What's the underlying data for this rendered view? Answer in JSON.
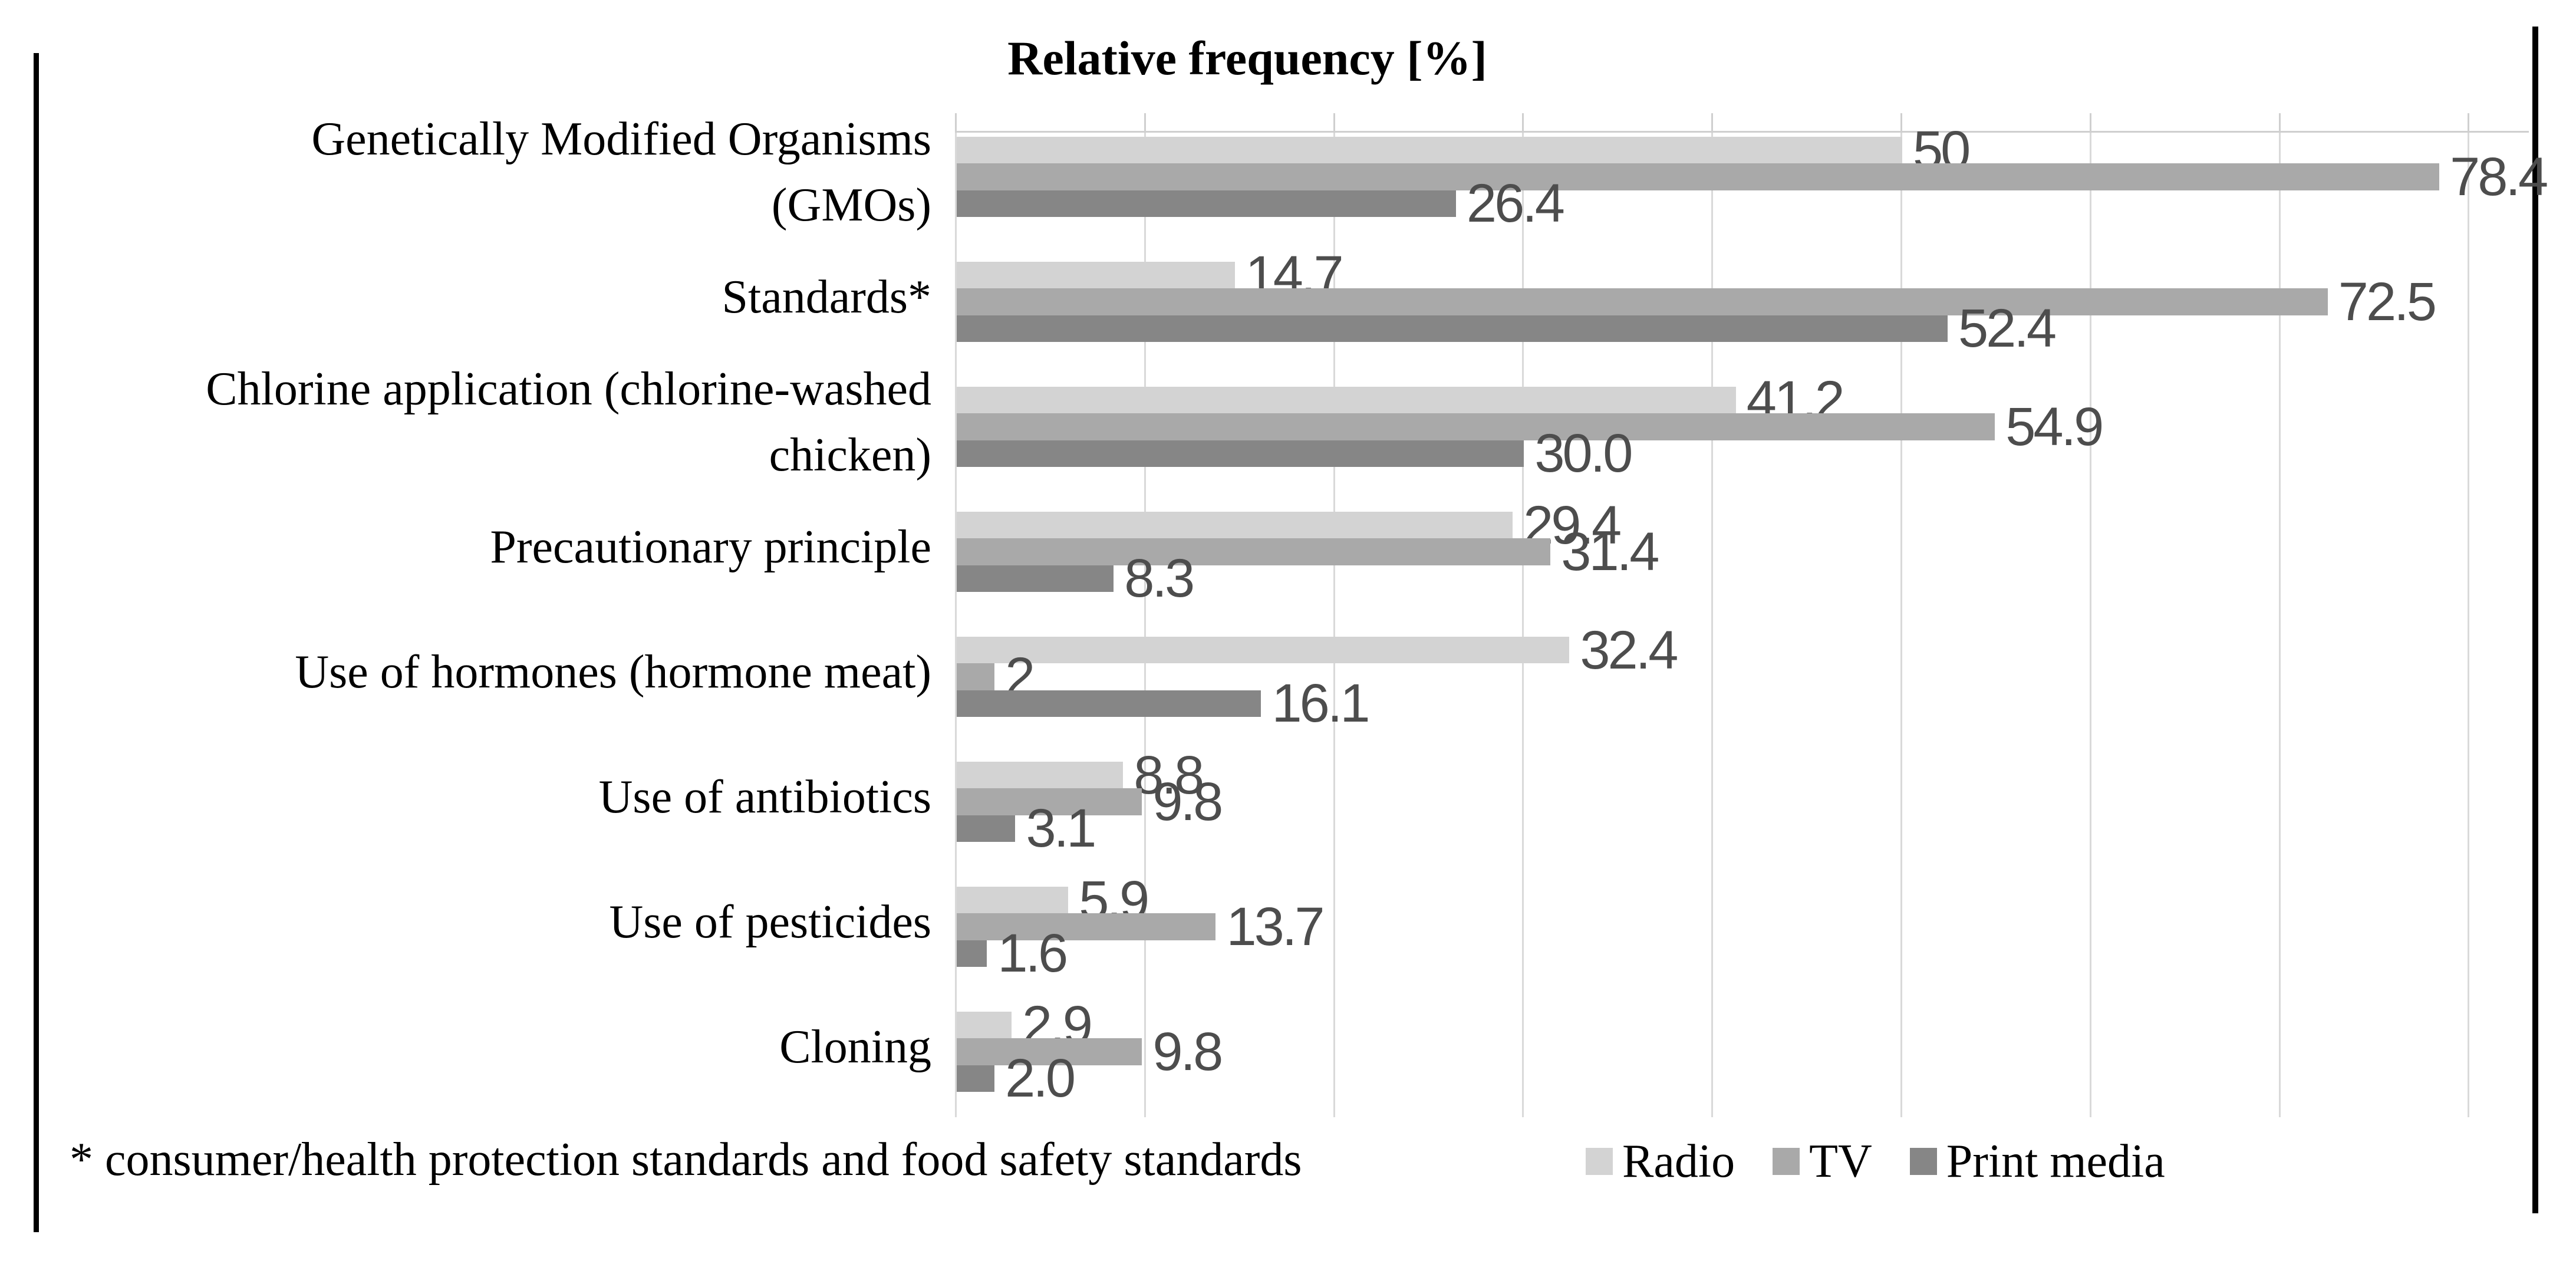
{
  "chart_data": {
    "type": "bar",
    "orientation": "horizontal",
    "title": "Relative frequency [%]",
    "categories": [
      "Genetically Modified Organisms (GMOs)",
      "Standards*",
      "Chlorine application (chlorine-washed chicken)",
      "Precautionary principle",
      "Use of hormones (hormone meat)",
      "Use of antibiotics",
      "Use of pesticides",
      "Cloning"
    ],
    "category_display_lines": [
      [
        "Genetically Modified Organisms",
        "(GMOs)"
      ],
      [
        "Standards*"
      ],
      [
        "Chlorine application (chlorine-washed",
        "chicken)"
      ],
      [
        "Precautionary principle"
      ],
      [
        "Use of hormones (hormone meat)"
      ],
      [
        "Use of antibiotics"
      ],
      [
        "Use of pesticides"
      ],
      [
        "Cloning"
      ]
    ],
    "series": [
      {
        "name": "Radio",
        "key": "radio",
        "color": "#d3d3d3",
        "values": [
          50,
          14.7,
          41.2,
          29.4,
          32.4,
          8.8,
          5.9,
          2.9
        ],
        "labels": [
          "50",
          "14.7",
          "41.2",
          "29.4",
          "32.4",
          "8.8",
          "5.9",
          "2.9"
        ]
      },
      {
        "name": "TV",
        "key": "tv",
        "color": "#a9a9a9",
        "values": [
          78.4,
          72.5,
          54.9,
          31.4,
          2,
          9.8,
          13.7,
          9.8
        ],
        "labels": [
          "78.4",
          "72.5",
          "54.9",
          "31.4",
          "2",
          "9.8",
          "13.7",
          "9.8"
        ]
      },
      {
        "name": "Print media",
        "key": "print-media",
        "color": "#868686",
        "values": [
          26.4,
          52.4,
          30.0,
          8.3,
          16.1,
          3.1,
          1.6,
          2.0
        ],
        "labels": [
          "26.4",
          "52.4",
          "30.0",
          "8.3",
          "16.1",
          "3.1",
          "1.6",
          "2.0"
        ]
      }
    ],
    "x_axis": {
      "min": 0,
      "max": 80,
      "gridline_step": 10,
      "tick_labels_visible": false
    },
    "y_axis_labels_visible": true,
    "grid": true,
    "legend_position": "bottom",
    "value_label_position": "outside-end"
  },
  "footnote": "* consumer/health protection standards and food safety standards",
  "legend": {
    "items": [
      {
        "label": "Radio",
        "color": "#d3d3d3"
      },
      {
        "label": "TV",
        "color": "#a9a9a9"
      },
      {
        "label": "Print media",
        "color": "#868686"
      }
    ]
  },
  "colors": {
    "gridline": "#d9d9d9",
    "axis_line": "#cfcfcf",
    "value_label_text": "#4d4d4d",
    "text": "#000000",
    "border": "#000000",
    "background": "#ffffff"
  }
}
